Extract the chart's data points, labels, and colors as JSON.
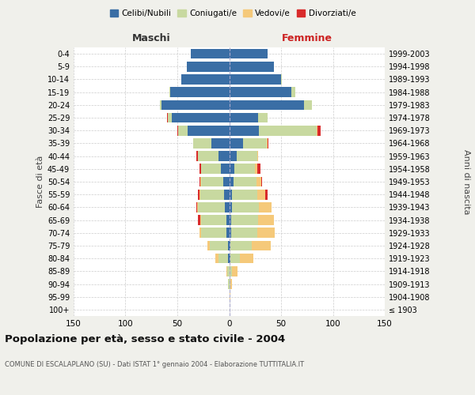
{
  "age_groups": [
    "100+",
    "95-99",
    "90-94",
    "85-89",
    "80-84",
    "75-79",
    "70-74",
    "65-69",
    "60-64",
    "55-59",
    "50-54",
    "45-49",
    "40-44",
    "35-39",
    "30-34",
    "25-29",
    "20-24",
    "15-19",
    "10-14",
    "5-9",
    "0-4"
  ],
  "birth_years": [
    "≤ 1903",
    "1904-1908",
    "1909-1913",
    "1914-1918",
    "1919-1923",
    "1924-1928",
    "1929-1933",
    "1934-1938",
    "1939-1943",
    "1944-1948",
    "1949-1953",
    "1954-1958",
    "1959-1963",
    "1964-1968",
    "1969-1973",
    "1974-1978",
    "1979-1983",
    "1984-1988",
    "1989-1993",
    "1994-1998",
    "1999-2003"
  ],
  "males": {
    "celibi": [
      0,
      0,
      0,
      0,
      1,
      1,
      3,
      3,
      4,
      5,
      6,
      8,
      10,
      17,
      40,
      55,
      65,
      57,
      46,
      41,
      37
    ],
    "coniugati": [
      0,
      0,
      1,
      2,
      9,
      18,
      24,
      24,
      26,
      23,
      21,
      19,
      20,
      18,
      9,
      4,
      2,
      1,
      0,
      0,
      0
    ],
    "vedovi": [
      0,
      0,
      0,
      1,
      3,
      2,
      2,
      1,
      1,
      1,
      1,
      0,
      0,
      0,
      0,
      0,
      0,
      0,
      0,
      0,
      0
    ],
    "divorziati": [
      0,
      0,
      0,
      0,
      0,
      0,
      0,
      2,
      1,
      1,
      1,
      2,
      2,
      0,
      1,
      1,
      0,
      0,
      0,
      0,
      0
    ]
  },
  "females": {
    "nubili": [
      0,
      0,
      0,
      0,
      1,
      1,
      2,
      2,
      3,
      3,
      4,
      5,
      7,
      13,
      29,
      28,
      72,
      60,
      50,
      43,
      37
    ],
    "coniugate": [
      0,
      0,
      1,
      3,
      9,
      21,
      25,
      26,
      26,
      24,
      22,
      20,
      20,
      23,
      55,
      9,
      8,
      4,
      1,
      0,
      0
    ],
    "vedove": [
      0,
      1,
      2,
      5,
      13,
      18,
      17,
      15,
      12,
      8,
      5,
      2,
      1,
      1,
      1,
      0,
      0,
      0,
      0,
      0,
      0
    ],
    "divorziate": [
      0,
      0,
      0,
      0,
      0,
      0,
      0,
      0,
      0,
      2,
      1,
      3,
      0,
      1,
      3,
      0,
      0,
      0,
      0,
      0,
      0
    ]
  },
  "color_celibi": "#3a6ea5",
  "color_coniugati": "#c8d9a0",
  "color_vedovi": "#f5c97a",
  "color_divorziati": "#d92b2b",
  "xlim": 150,
  "title": "Popolazione per età, sesso e stato civile - 2004",
  "subtitle": "COMUNE DI ESCALAPLANO (SU) - Dati ISTAT 1° gennaio 2004 - Elaborazione TUTTITALIA.IT",
  "ylabel_left": "Fasce di età",
  "ylabel_right": "Anni di nascita",
  "xlabel_maschi": "Maschi",
  "xlabel_femmine": "Femmine",
  "bg_color": "#f0f0eb",
  "plot_bg": "#ffffff"
}
